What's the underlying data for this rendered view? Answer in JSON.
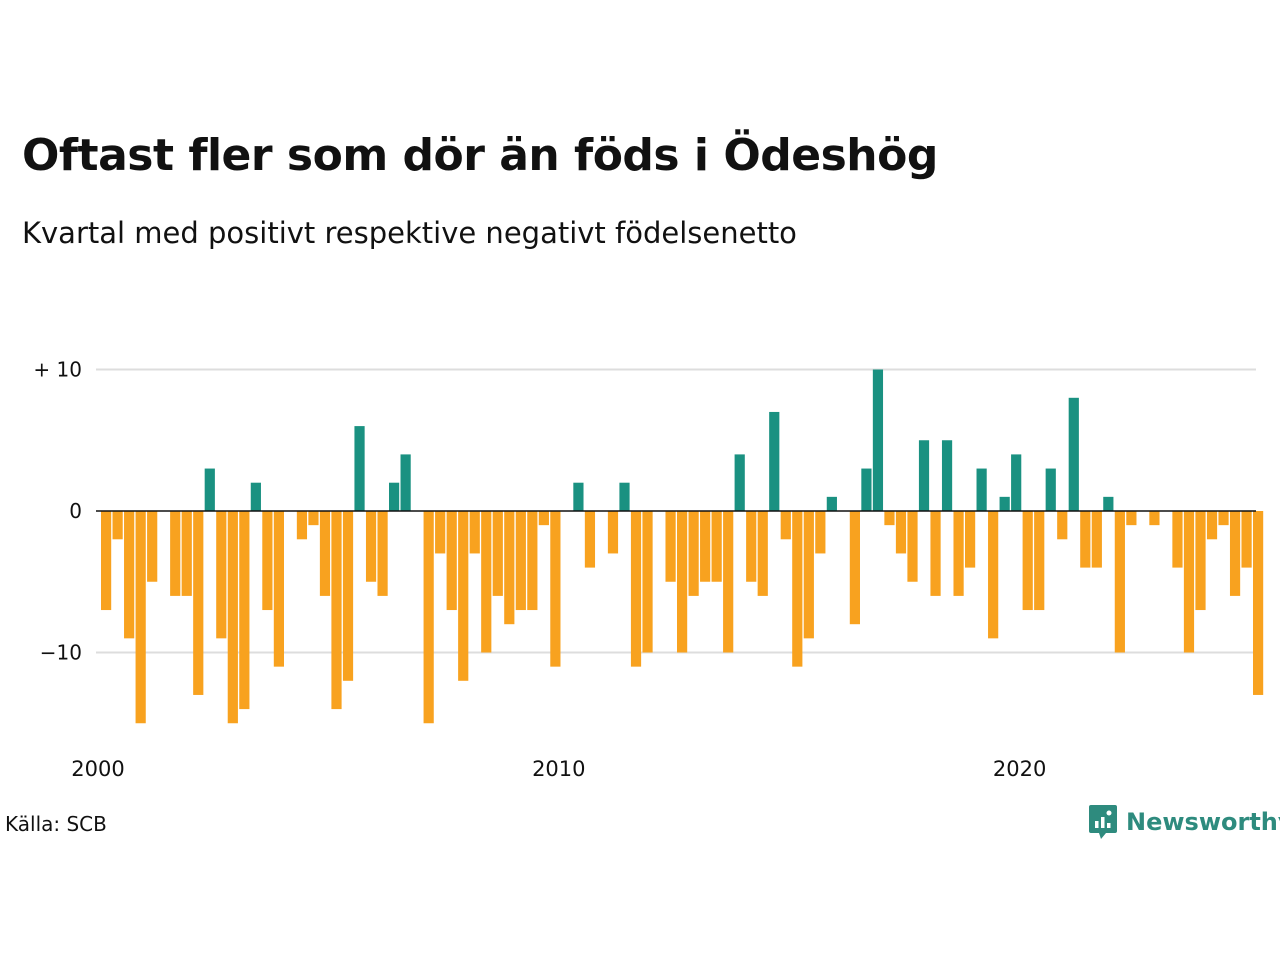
{
  "title": "Oftast fler som dör än föds i Ödeshög",
  "subtitle": "Kvartal med positivt respektive negativt födelsenetto",
  "source": "Källa: SCB",
  "brand": "Newsworthy",
  "colors": {
    "positive": "#1a9181",
    "negative": "#f8a21f",
    "grid": "#dddddd",
    "axis": "#111111",
    "brand": "#2e8b7e"
  },
  "chart_data": {
    "type": "bar",
    "x_start": "2000 Q1",
    "values": [
      -7,
      -2,
      -9,
      -15,
      -5,
      0,
      -6,
      -6,
      -13,
      3,
      -9,
      -15,
      -14,
      2,
      -7,
      -11,
      0,
      -2,
      -1,
      -6,
      -14,
      -12,
      6,
      -5,
      -6,
      2,
      4,
      0,
      -15,
      -3,
      -7,
      -12,
      -3,
      -10,
      -6,
      -8,
      -7,
      -7,
      -1,
      -11,
      0,
      2,
      -4,
      0,
      -3,
      2,
      -11,
      -10,
      0,
      -5,
      -10,
      -6,
      -5,
      -5,
      -10,
      4,
      -5,
      -6,
      7,
      -2,
      -11,
      -9,
      -3,
      1,
      0,
      -8,
      3,
      10,
      -1,
      -3,
      -5,
      5,
      -6,
      5,
      -6,
      -4,
      3,
      -9,
      1,
      4,
      -7,
      -7,
      3,
      -2,
      8,
      -4,
      -4,
      1,
      -10,
      -1,
      0,
      -1,
      0,
      -4,
      -10,
      -7,
      -2,
      -1,
      -6,
      -4,
      -13
    ],
    "y_ticks": [
      {
        "value": 10,
        "label": "+ 10"
      },
      {
        "value": 0,
        "label": "0"
      },
      {
        "value": -10,
        "label": "−10"
      }
    ],
    "x_ticks": [
      {
        "index": 0,
        "label": "2000"
      },
      {
        "index": 40,
        "label": "2010"
      },
      {
        "index": 80,
        "label": "2020"
      }
    ],
    "ylim": [
      -15,
      10
    ],
    "grid": true,
    "legend": false
  }
}
